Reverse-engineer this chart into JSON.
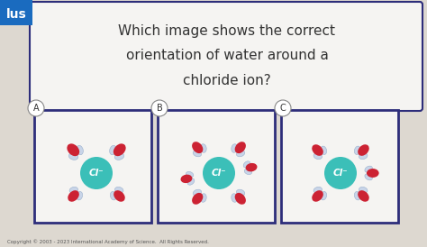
{
  "title_line1": "Which image shows the correct",
  "title_line2": "orientation of water around a",
  "title_line3": "chloride ion?",
  "bg_color": "#ddd8d0",
  "panel_bg": "#f5f4f2",
  "panel_border": "#2d2d7a",
  "title_box_bg": "#f5f4f2",
  "title_box_border": "#2d2d7a",
  "cl_color": "#3bbfb8",
  "cl_label": "Cl⁻",
  "label_A": "A",
  "label_B": "B",
  "label_C": "C",
  "copyright": "Copyright © 2003 - 2023 International Academy of Science.  All Rights Reserved.",
  "lus_bg": "#1a6bbf",
  "lus_text": "lus",
  "water_red": "#cc2233",
  "water_blue": "#c8d4e8",
  "title_color": "#333333"
}
